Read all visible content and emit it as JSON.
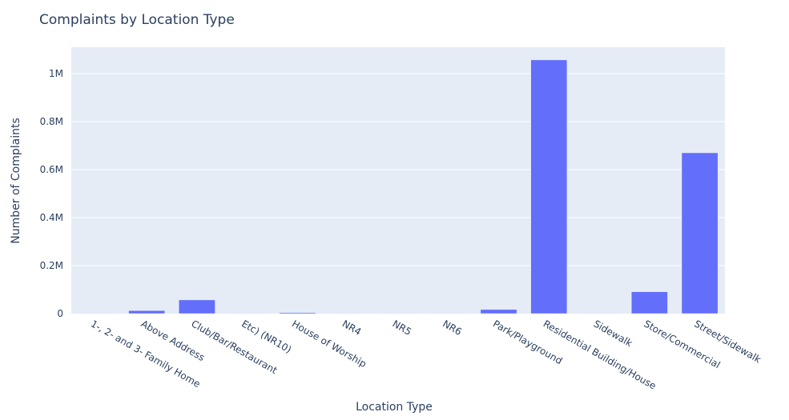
{
  "chart_data": {
    "type": "bar",
    "title": "Complaints by Location Type",
    "xlabel": "Location Type",
    "ylabel": "Number of Complaints",
    "categories": [
      "1-, 2- and 3- Family Home",
      "Above Address",
      "Club/Bar/Restaurant",
      "Etc) (NR10)",
      "House of Worship",
      "NR4",
      "NR5",
      "NR6",
      "Park/Playground",
      "Residential Building/House",
      "Sidewalk",
      "Store/Commercial",
      "Street/Sidewalk"
    ],
    "values": [
      30,
      12500,
      57000,
      30,
      4000,
      30,
      1000,
      30,
      17000,
      1057000,
      800,
      91000,
      670000
    ],
    "ylim": [
      0,
      1110000
    ],
    "yticks": [
      0,
      200000,
      400000,
      600000,
      800000,
      1000000
    ],
    "ytick_labels": [
      "0",
      "0.2M",
      "0.4M",
      "0.6M",
      "0.8M",
      "1M"
    ],
    "grid": true,
    "legend": "none",
    "colors": {
      "bar": "#636efa",
      "plot_bg": "#e5ecf6",
      "text": "#2a3f5f"
    }
  }
}
